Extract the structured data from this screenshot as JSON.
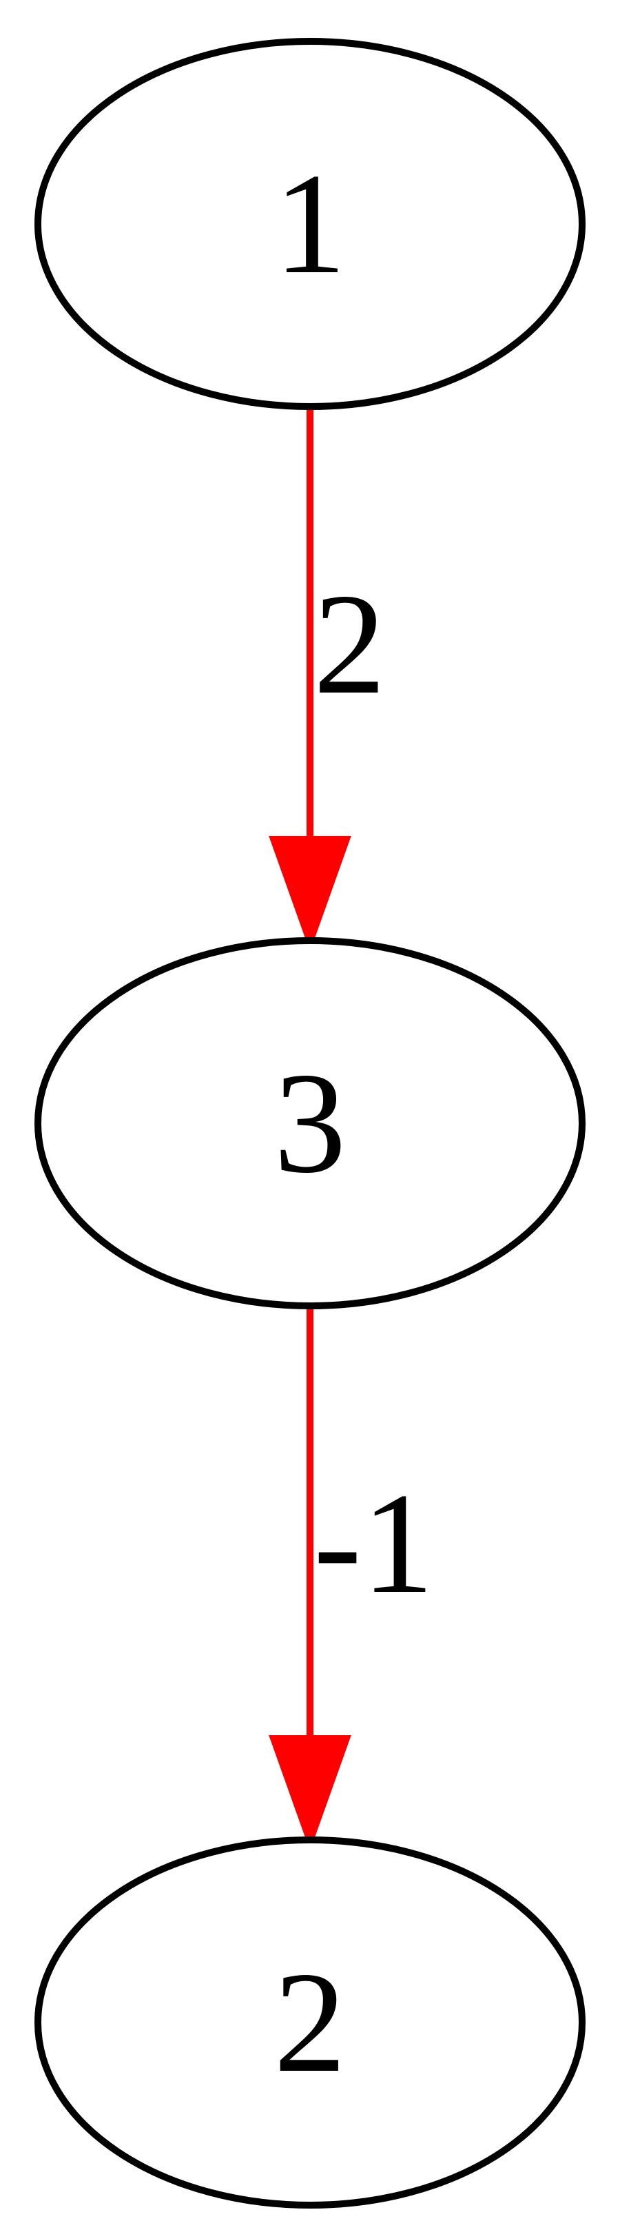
{
  "graph": {
    "nodes": [
      {
        "id": "1",
        "label": "1"
      },
      {
        "id": "3",
        "label": "3"
      },
      {
        "id": "2",
        "label": "2"
      }
    ],
    "edges": [
      {
        "from": "1",
        "to": "3",
        "label": "2",
        "color": "#ff0000"
      },
      {
        "from": "3",
        "to": "2",
        "label": "-1",
        "color": "#ff0000"
      }
    ]
  }
}
